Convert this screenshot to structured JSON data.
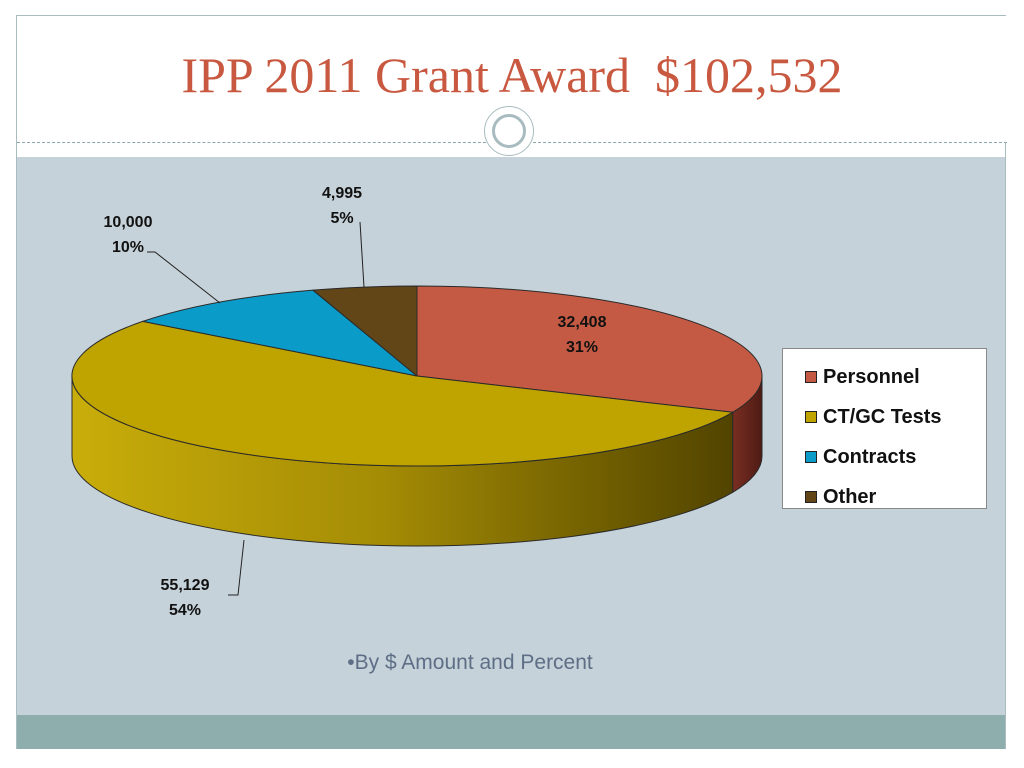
{
  "slide": {
    "title": "IPP 2011 Grant Award  $102,532",
    "bullet": "•By $ Amount and Percent"
  },
  "chart_data": {
    "type": "pie",
    "style": "3d-exploded-perspective",
    "start_angle_degrees": 90,
    "direction": "clockwise",
    "slices": [
      {
        "label": "Personnel",
        "value": 32408,
        "percent": "31%",
        "value_label": "32,408",
        "color": "#c55a44"
      },
      {
        "label": "CT/GC Tests",
        "value": 55129,
        "percent": "54%",
        "value_label": "55,129",
        "color": "#bfa400"
      },
      {
        "label": "Contracts",
        "value": 10000,
        "percent": "10%",
        "value_label": "10,000",
        "color": "#0b9bc9"
      },
      {
        "label": "Other",
        "value": 4995,
        "percent": "5%",
        "value_label": "4,995",
        "color": "#624618"
      }
    ],
    "legend": {
      "placement": "right",
      "entries": [
        "Personnel",
        "CT/GC Tests",
        "Contracts",
        "Other"
      ]
    }
  }
}
